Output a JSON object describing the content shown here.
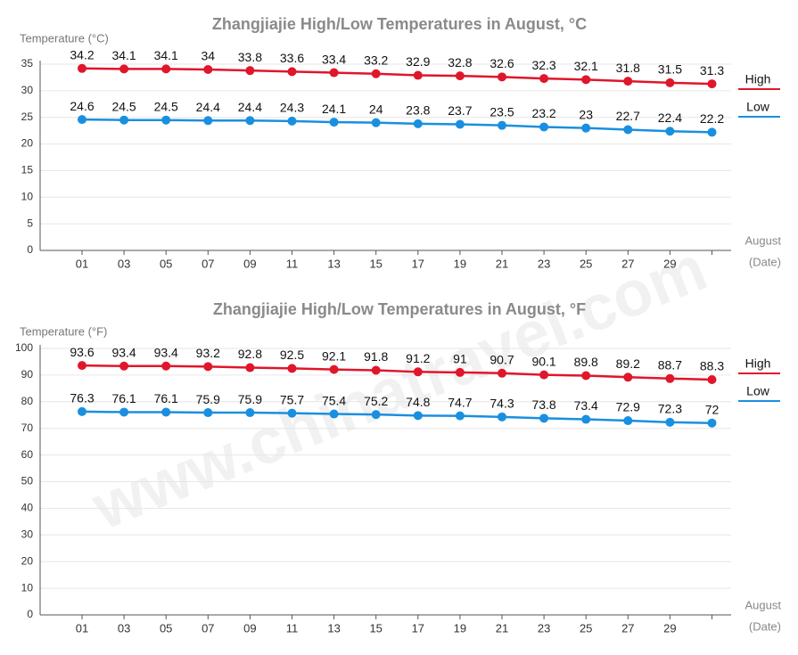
{
  "watermark": "www.chinatravel.com",
  "chart_data": [
    {
      "type": "line",
      "title": "Zhangjiajie High/Low Temperatures in August, °C",
      "y_label": "Temperature (°C)",
      "x_label": "August",
      "x_unit": "(Date)",
      "categories": [
        "01",
        null,
        "03",
        null,
        "05",
        null,
        "07",
        null,
        "09",
        null,
        "11",
        null,
        "13",
        null,
        "15",
        null,
        "17",
        null,
        "19",
        null,
        "21",
        null,
        "23",
        null,
        "25",
        null,
        "27",
        null,
        "29",
        null,
        null
      ],
      "x": [
        "01",
        "03",
        "05",
        "07",
        "09",
        "11",
        "13",
        "15",
        "17",
        "19",
        "21",
        "23",
        "25",
        "27",
        "29",
        null
      ],
      "series": [
        {
          "name": "High",
          "color": "#e0162b",
          "values": [
            34.2,
            34.1,
            34.1,
            34,
            33.8,
            33.6,
            33.4,
            33.2,
            32.9,
            32.8,
            32.6,
            32.3,
            32.1,
            31.8,
            31.5,
            31.3
          ]
        },
        {
          "name": "Low",
          "color": "#1a8fe0",
          "values": [
            24.6,
            24.5,
            24.5,
            24.4,
            24.4,
            24.3,
            24.1,
            24,
            23.8,
            23.7,
            23.5,
            23.2,
            23,
            22.7,
            22.4,
            22.2
          ]
        }
      ],
      "ylim": [
        0,
        35
      ],
      "yticks": [
        0,
        5,
        10,
        15,
        20,
        25,
        30,
        35
      ],
      "grid": true,
      "legend": "right"
    },
    {
      "type": "line",
      "title": "Zhangjiajie High/Low Temperatures in August, °F",
      "y_label": "Temperature (°F)",
      "x_label": "August",
      "x_unit": "(Date)",
      "x": [
        "01",
        "03",
        "05",
        "07",
        "09",
        "11",
        "13",
        "15",
        "17",
        "19",
        "21",
        "23",
        "25",
        "27",
        "29",
        null
      ],
      "series": [
        {
          "name": "High",
          "color": "#e0162b",
          "values": [
            93.6,
            93.4,
            93.4,
            93.2,
            92.8,
            92.5,
            92.1,
            91.8,
            91.2,
            91,
            90.7,
            90.1,
            89.8,
            89.2,
            88.7,
            88.3
          ]
        },
        {
          "name": "Low",
          "color": "#1a8fe0",
          "values": [
            76.3,
            76.1,
            76.1,
            75.9,
            75.9,
            75.7,
            75.4,
            75.2,
            74.8,
            74.7,
            74.3,
            73.8,
            73.4,
            72.9,
            72.3,
            72
          ]
        }
      ],
      "ylim": [
        0,
        100
      ],
      "yticks": [
        0,
        10,
        20,
        30,
        40,
        50,
        60,
        70,
        80,
        90,
        100
      ],
      "grid": true,
      "legend": "right"
    }
  ]
}
